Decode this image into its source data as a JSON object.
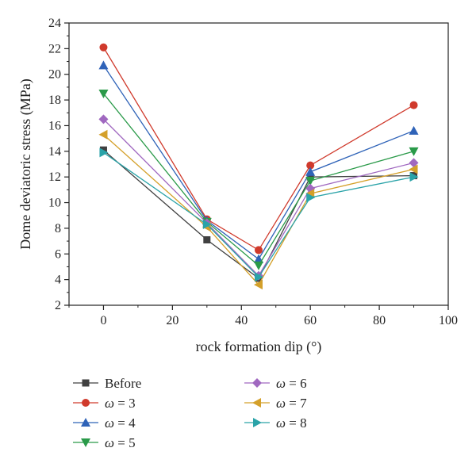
{
  "chart_data": {
    "type": "line",
    "xlabel": "rock formation dip (°)",
    "ylabel": "Dome deviatoric stress (MPa)",
    "xlim": [
      -10,
      100
    ],
    "ylim": [
      2,
      24
    ],
    "xticks": [
      0,
      20,
      40,
      60,
      80,
      100
    ],
    "yticks": [
      2,
      4,
      6,
      8,
      10,
      12,
      14,
      16,
      18,
      20,
      22,
      24
    ],
    "grid": false,
    "legend_position": "bottom",
    "x": [
      0,
      30,
      45,
      60,
      90
    ],
    "series": [
      {
        "name": "Before",
        "legend_var": "",
        "legend_val": "",
        "color": "#404040",
        "marker": "square",
        "values": [
          14.1,
          7.1,
          4.1,
          12.0,
          12.1
        ]
      },
      {
        "name": "ω = 3",
        "legend_var": "ω",
        "legend_val": " = 3",
        "color": "#d03a2c",
        "marker": "circle",
        "values": [
          22.1,
          8.7,
          6.3,
          12.9,
          17.6
        ]
      },
      {
        "name": "ω = 4",
        "legend_var": "ω",
        "legend_val": " = 4",
        "color": "#2f63b8",
        "marker": "triangle-up",
        "values": [
          20.7,
          8.6,
          5.6,
          12.4,
          15.6
        ]
      },
      {
        "name": "ω = 5",
        "legend_var": "ω",
        "legend_val": " = 5",
        "color": "#2a9a49",
        "marker": "triangle-down",
        "values": [
          18.5,
          8.5,
          5.1,
          11.7,
          14.0
        ]
      },
      {
        "name": "ω = 6",
        "legend_var": "ω",
        "legend_val": " = 6",
        "color": "#a068c0",
        "marker": "diamond",
        "values": [
          16.5,
          8.4,
          4.3,
          11.1,
          13.1
        ]
      },
      {
        "name": "ω = 7",
        "legend_var": "ω",
        "legend_val": " = 7",
        "color": "#d4a02a",
        "marker": "triangle-left",
        "values": [
          15.3,
          8.1,
          3.6,
          10.7,
          12.6
        ]
      },
      {
        "name": "ω = 8",
        "legend_var": "ω",
        "legend_val": " = 8",
        "color": "#2aa3a8",
        "marker": "triangle-right",
        "values": [
          13.9,
          8.3,
          4.2,
          10.4,
          12.0
        ]
      }
    ]
  }
}
